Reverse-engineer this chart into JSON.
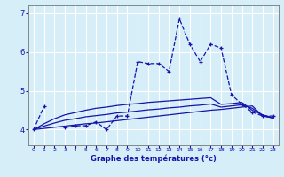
{
  "xlabel": "Graphe des températures (°c)",
  "hours": [
    0,
    1,
    2,
    3,
    4,
    5,
    6,
    7,
    8,
    9,
    10,
    11,
    12,
    13,
    14,
    15,
    16,
    17,
    18,
    19,
    20,
    21,
    22,
    23
  ],
  "temp_curve": [
    4.0,
    4.6,
    null,
    4.05,
    4.1,
    4.1,
    4.2,
    4.0,
    4.35,
    4.35,
    5.75,
    5.7,
    5.7,
    5.5,
    6.85,
    6.2,
    5.75,
    6.2,
    6.1,
    4.9,
    4.65,
    4.45,
    4.35,
    4.35
  ],
  "reg_line1_x": [
    0,
    1,
    2,
    3,
    4,
    5,
    6,
    7,
    8,
    9,
    10,
    11,
    12,
    13,
    14,
    15,
    16,
    17,
    18,
    19,
    20,
    21,
    22,
    23
  ],
  "reg_line1_y": [
    4.0,
    4.03,
    4.06,
    4.09,
    4.12,
    4.15,
    4.17,
    4.2,
    4.23,
    4.26,
    4.29,
    4.32,
    4.35,
    4.38,
    4.41,
    4.44,
    4.47,
    4.5,
    4.52,
    4.55,
    4.58,
    4.61,
    4.35,
    4.3
  ],
  "reg_line2_x": [
    0,
    1,
    2,
    3,
    4,
    5,
    6,
    7,
    8,
    9,
    10,
    11,
    12,
    13,
    14,
    15,
    16,
    17,
    18,
    19,
    20,
    21,
    22,
    23
  ],
  "reg_line2_y": [
    4.0,
    4.15,
    4.28,
    4.38,
    4.44,
    4.5,
    4.55,
    4.58,
    4.62,
    4.65,
    4.67,
    4.7,
    4.72,
    4.74,
    4.76,
    4.78,
    4.8,
    4.82,
    4.65,
    4.67,
    4.7,
    4.5,
    4.38,
    4.3
  ],
  "reg_line3_x": [
    0,
    1,
    2,
    3,
    4,
    5,
    6,
    7,
    8,
    9,
    10,
    11,
    12,
    13,
    14,
    15,
    16,
    17,
    18,
    19,
    20,
    21,
    22,
    23
  ],
  "reg_line3_y": [
    4.0,
    4.09,
    4.17,
    4.24,
    4.28,
    4.33,
    4.36,
    4.39,
    4.43,
    4.45,
    4.48,
    4.51,
    4.53,
    4.56,
    4.58,
    4.61,
    4.63,
    4.66,
    4.58,
    4.61,
    4.64,
    4.55,
    4.36,
    4.3
  ],
  "color": "#1515aa",
  "bg_color": "#d6eef8",
  "grid_color": "#ffffff",
  "ylim": [
    3.6,
    7.2
  ],
  "yticks": [
    4,
    5,
    6,
    7
  ],
  "xticks": [
    0,
    1,
    2,
    3,
    4,
    5,
    6,
    7,
    8,
    9,
    10,
    11,
    12,
    13,
    14,
    15,
    16,
    17,
    18,
    19,
    20,
    21,
    22,
    23
  ]
}
